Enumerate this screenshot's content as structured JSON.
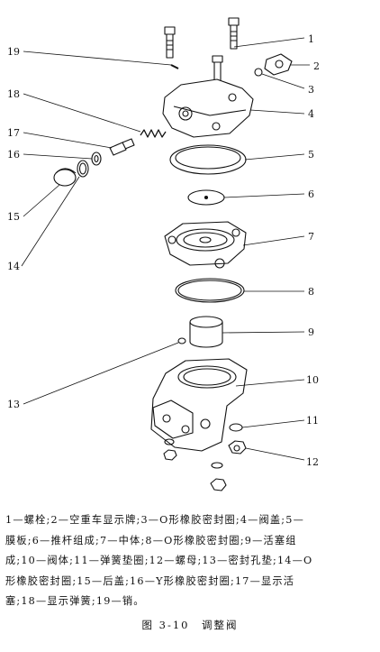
{
  "figure": {
    "callouts": [
      "1",
      "2",
      "3",
      "4",
      "5",
      "6",
      "7",
      "8",
      "9",
      "10",
      "11",
      "12",
      "13",
      "14",
      "15",
      "16",
      "17",
      "18",
      "19"
    ]
  },
  "caption": {
    "legend_lines": [
      "1—螺栓;2—空重车显示牌;3—O形橡胶密封圈;4—阀盖;5—",
      "膜板;6—推杆组成;7—中体;8—O形橡胶密封圈;9—活塞组",
      "成;10—阀体;11—弹簧垫圈;12—螺母;13—密封孔垫;14—O",
      "形橡胶密封圈;15—后盖;16—Y形橡胶密封圈;17—显示活",
      "塞;18—显示弹簧;19—销。"
    ],
    "title": "图 3-10　调整阀"
  }
}
